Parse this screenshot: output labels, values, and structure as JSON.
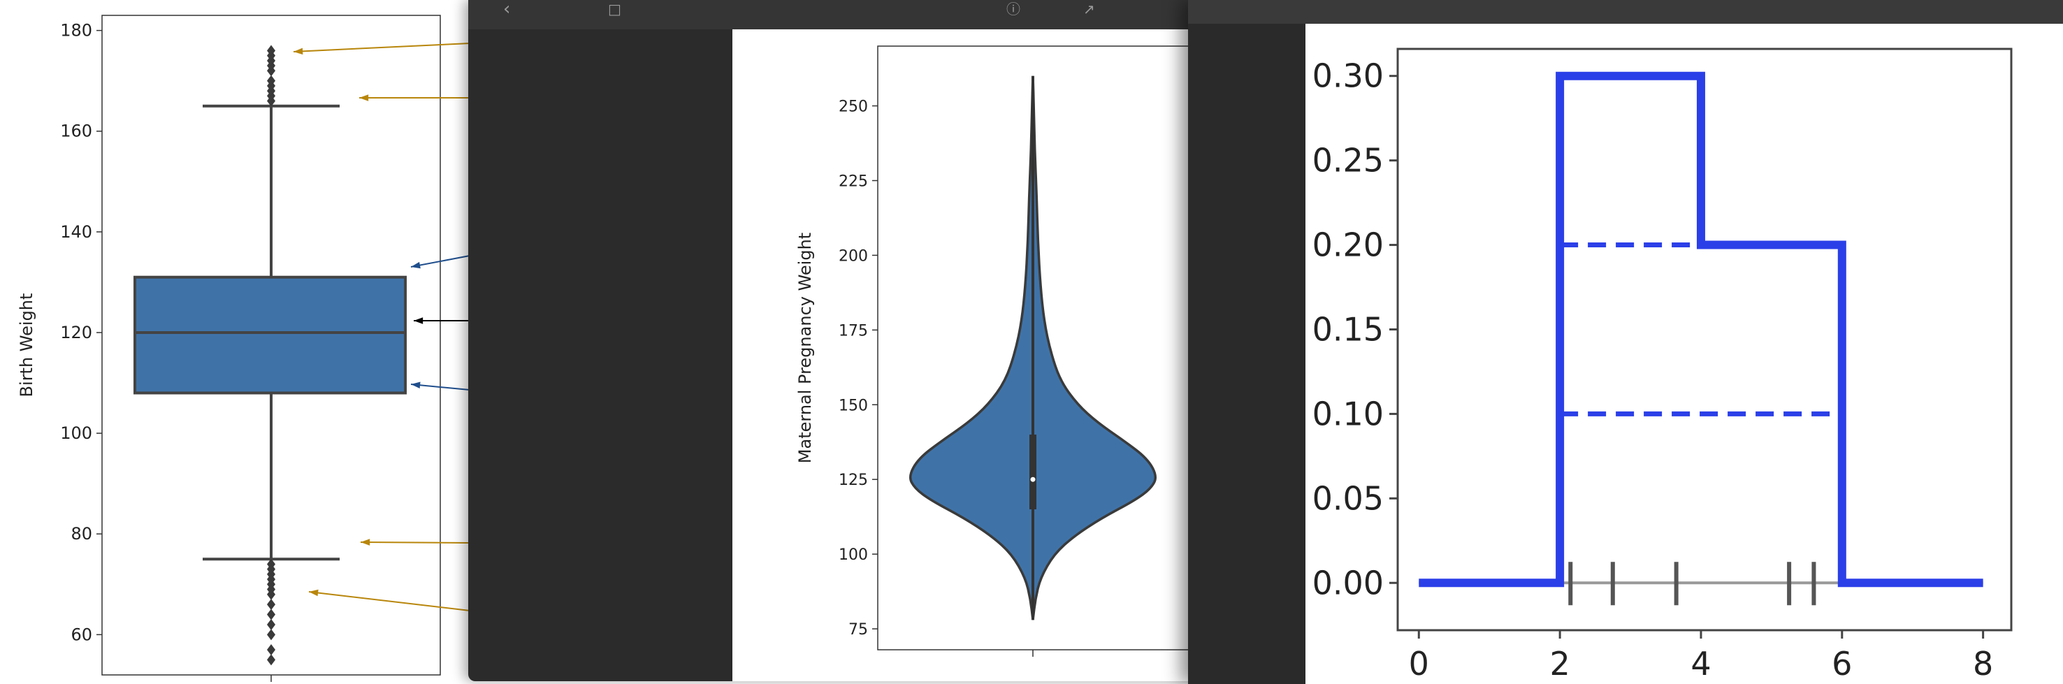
{
  "chart_data": [
    {
      "type": "box",
      "ylabel": "Birth Weight",
      "yticks": [
        60,
        80,
        100,
        120,
        140,
        160,
        180
      ],
      "ylim": [
        52,
        183
      ],
      "grid": false,
      "box": {
        "q1": 108,
        "median": 120,
        "q3": 131,
        "whisker_low": 75,
        "whisker_high": 165,
        "outliers_high": [
          166,
          167,
          168,
          169,
          170,
          172,
          173,
          174,
          175,
          176
        ],
        "outliers_low": [
          55,
          57,
          60,
          62,
          64,
          66,
          68,
          69,
          70,
          71,
          72,
          73,
          74
        ]
      },
      "colors": {
        "box": "#3f73a8",
        "annotation_gold": "#b8860b",
        "annotation_blue": "#1f4e8c",
        "annotation_black": "#000000"
      }
    },
    {
      "type": "violin",
      "ylabel": "Maternal Pregnancy Weight",
      "yticks": [
        75,
        100,
        125,
        150,
        175,
        200,
        225,
        250
      ],
      "ylim": [
        68,
        270
      ],
      "grid": false,
      "violin": {
        "min": 78,
        "max": 260,
        "q1": 115,
        "median": 125,
        "q3": 140,
        "density": [
          [
            78,
            0.0
          ],
          [
            85,
            0.02
          ],
          [
            92,
            0.06
          ],
          [
            100,
            0.17
          ],
          [
            106,
            0.33
          ],
          [
            112,
            0.55
          ],
          [
            118,
            0.82
          ],
          [
            122,
            0.95
          ],
          [
            126,
            1.0
          ],
          [
            132,
            0.92
          ],
          [
            138,
            0.73
          ],
          [
            144,
            0.52
          ],
          [
            150,
            0.36
          ],
          [
            158,
            0.22
          ],
          [
            168,
            0.14
          ],
          [
            178,
            0.09
          ],
          [
            190,
            0.06
          ],
          [
            205,
            0.04
          ],
          [
            220,
            0.03
          ],
          [
            235,
            0.015
          ],
          [
            250,
            0.007
          ],
          [
            260,
            0.0
          ]
        ]
      },
      "colors": {
        "violin": "#3f73a8"
      }
    },
    {
      "type": "step",
      "xticks": [
        0,
        2,
        4,
        6,
        8
      ],
      "yticks": [
        "0.00",
        "0.05",
        "0.10",
        "0.15",
        "0.20",
        "0.25",
        "0.30"
      ],
      "xlim": [
        -0.3,
        8.4
      ],
      "ylim": [
        -0.028,
        0.316
      ],
      "grid": false,
      "series": [
        {
          "style": "solid",
          "x": [
            0,
            2,
            2,
            4,
            4,
            6,
            6,
            8
          ],
          "y": [
            0,
            0,
            0.3,
            0.3,
            0.2,
            0.2,
            0,
            0
          ]
        },
        {
          "style": "dashed",
          "x": [
            2,
            4
          ],
          "y": [
            0.2,
            0.2
          ]
        },
        {
          "style": "dashed",
          "x": [
            2,
            6
          ],
          "y": [
            0.1,
            0.1
          ]
        }
      ],
      "rug": [
        2.15,
        2.75,
        3.65,
        5.25,
        5.6
      ],
      "colors": {
        "line": "#2b3fe8",
        "rug": "#555555"
      }
    }
  ]
}
